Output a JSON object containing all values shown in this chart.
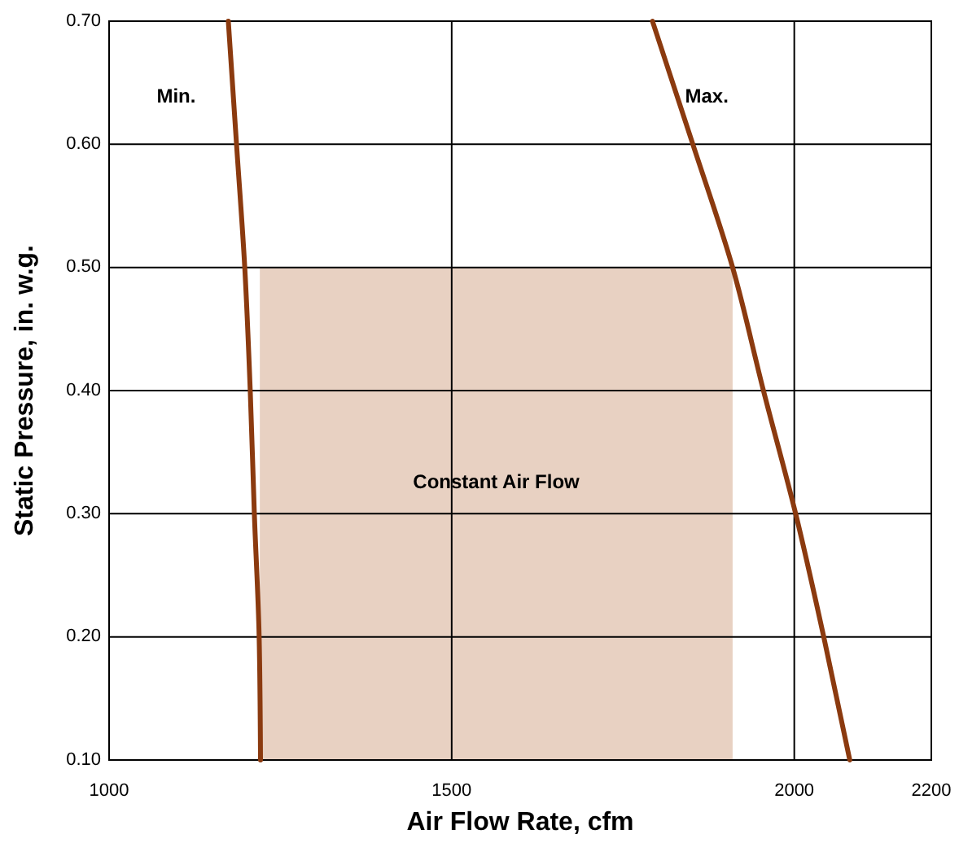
{
  "chart_data": {
    "type": "line",
    "xlabel": "Air Flow Rate, cfm",
    "ylabel": "Static Pressure, in. w.g.",
    "xlim": [
      1000,
      2200
    ],
    "xticks": [
      1000,
      1500,
      2000,
      2200
    ],
    "ylim": [
      0.1,
      0.7
    ],
    "yticks": [
      {
        "value": 0.1,
        "label": "0.10"
      },
      {
        "value": 0.2,
        "label": "0.20"
      },
      {
        "value": 0.3,
        "label": "0.30"
      },
      {
        "value": 0.4,
        "label": "0.40"
      },
      {
        "value": 0.5,
        "label": "0.50"
      },
      {
        "value": 0.6,
        "label": "0.60"
      },
      {
        "value": 0.7,
        "label": "0.70"
      }
    ],
    "grid": true,
    "series": [
      {
        "type": "area",
        "name": "Constant Air Flow",
        "color": "#e8d1c2",
        "x": [
          1220,
          1910
        ],
        "values": [
          0.5,
          0.5
        ]
      },
      {
        "name": "Min.",
        "color": "#8b3a0f",
        "x": [
          1174,
          1186,
          1198,
          1206,
          1212,
          1219,
          1221
        ],
        "values": [
          0.7,
          0.6,
          0.5,
          0.4,
          0.3,
          0.2,
          0.1
        ]
      },
      {
        "name": "Max.",
        "color": "#8b3a0f",
        "x": [
          1793,
          1852,
          1910,
          1955,
          2002,
          2043,
          2081
        ],
        "values": [
          0.7,
          0.6,
          0.5,
          0.4,
          0.3,
          0.2,
          0.1
        ]
      }
    ]
  }
}
